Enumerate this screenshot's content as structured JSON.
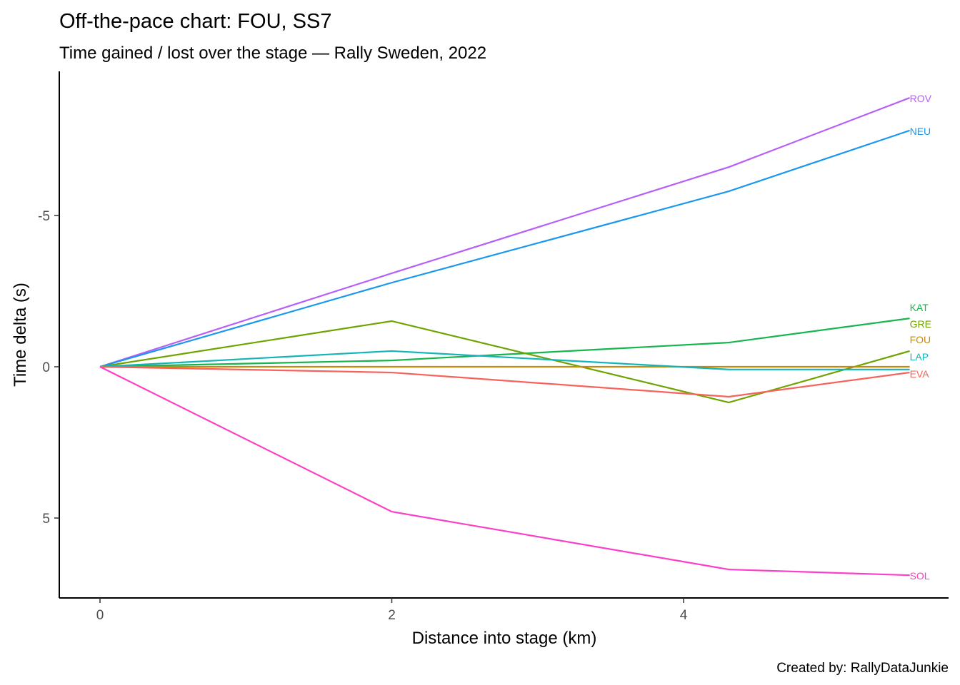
{
  "chart_data": {
    "type": "line",
    "title": "Off-the-pace chart: FOU, SS7",
    "subtitle": "Time gained / lost over the stage — Rally Sweden, 2022",
    "xlabel": "Distance into stage (km)",
    "ylabel": "Time delta (s)",
    "caption": "Created by: RallyDataJunkie",
    "xlim": [
      0,
      5.56
    ],
    "ylim": [
      -9.5,
      7.6
    ],
    "y_reversed": true,
    "grid": false,
    "xticks": [
      {
        "v": 0,
        "label": "0"
      },
      {
        "v": 2,
        "label": "2"
      },
      {
        "v": 4,
        "label": "4"
      }
    ],
    "yticks": [
      {
        "v": -5,
        "label": "-5"
      },
      {
        "v": 0,
        "label": "0"
      },
      {
        "v": 5,
        "label": "5"
      }
    ],
    "x": [
      0,
      2,
      4.31,
      5.55
    ],
    "series": [
      {
        "name": "ROV",
        "color": "#B75FF7",
        "values": [
          0,
          -3.09,
          -6.6,
          -8.89
        ]
      },
      {
        "name": "NEU",
        "color": "#1B98EE",
        "values": [
          0,
          -2.78,
          -5.8,
          -7.81
        ]
      },
      {
        "name": "KAT",
        "color": "#16B54D",
        "values": [
          0,
          -0.21,
          -0.8,
          -1.6
        ]
      },
      {
        "name": "GRE",
        "color": "#6FA300",
        "values": [
          0,
          -1.51,
          1.18,
          -0.52
        ]
      },
      {
        "name": "FOU",
        "color": "#C6890A",
        "values": [
          0,
          0,
          0,
          0
        ]
      },
      {
        "name": "LAP",
        "color": "#14B5B8",
        "values": [
          0,
          -0.52,
          0.09,
          0.09
        ]
      },
      {
        "name": "EVA",
        "color": "#F5635C",
        "values": [
          0,
          0.19,
          0.99,
          0.19
        ]
      },
      {
        "name": "SOL",
        "color": "#FB3FC8",
        "values": [
          0,
          4.79,
          6.7,
          6.89
        ]
      }
    ]
  }
}
